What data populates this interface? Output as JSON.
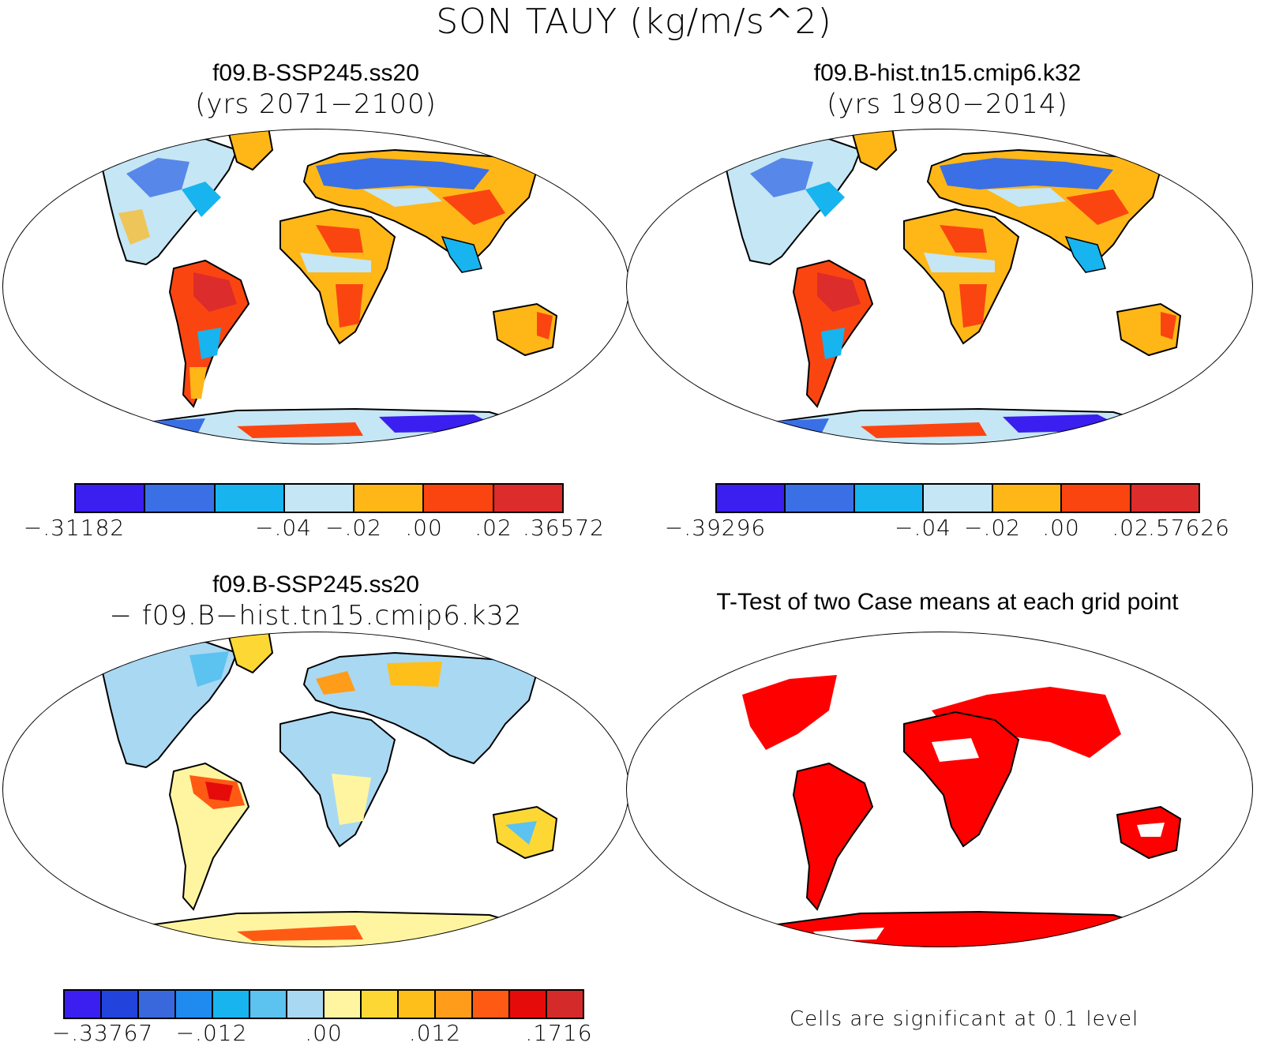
{
  "title": "SON TAUY (kg/m/s^2)",
  "panels": {
    "p1": {
      "title": "f09.B-SSP245.ss20",
      "subtitle": "(yrs 2071−2100)"
    },
    "p2": {
      "title": "f09.B-hist.tn15.cmip6.k32",
      "subtitle": "(yrs 1980−2014)"
    },
    "p3": {
      "title": "f09.B-SSP245.ss20",
      "subtitle": "− f09.B−hist.tn15.cmip6.k32"
    },
    "p4": {
      "title": "T-Test of two Case means at each grid point"
    }
  },
  "colorbars": {
    "cb1": {
      "colors": [
        "#3a1ff0",
        "#3a6fe6",
        "#17b4ef",
        "#c5e6f4",
        "#ffb717",
        "#fb4511",
        "#dc2c2c"
      ],
      "ticks": [
        "−.31182",
        "−.04",
        "−.02",
        ".00",
        ".02",
        ".36572"
      ]
    },
    "cb2": {
      "colors": [
        "#3a1ff0",
        "#3a6fe6",
        "#17b4ef",
        "#c5e6f4",
        "#ffb717",
        "#fb4511",
        "#dc2c2c"
      ],
      "ticks": [
        "−.39296",
        "−.04",
        "−.02",
        ".00",
        ".02",
        ".57626"
      ]
    },
    "cb3": {
      "colors": [
        "#3a1ff0",
        "#2243dc",
        "#3968dc",
        "#1f8af0",
        "#17b4ef",
        "#5cc2f0",
        "#a9d8f2",
        "#fff5a0",
        "#fdd835",
        "#ffbf1a",
        "#ff9d1a",
        "#ff5a14",
        "#e50b0b",
        "#d42a2a"
      ],
      "ticks": [
        "−.33767",
        "−.012",
        ".00",
        ".012",
        ".1716"
      ]
    }
  },
  "significance_note": "Cells are significant at 0.1 level",
  "legend_colors": {
    "significant": "#ff0000"
  }
}
